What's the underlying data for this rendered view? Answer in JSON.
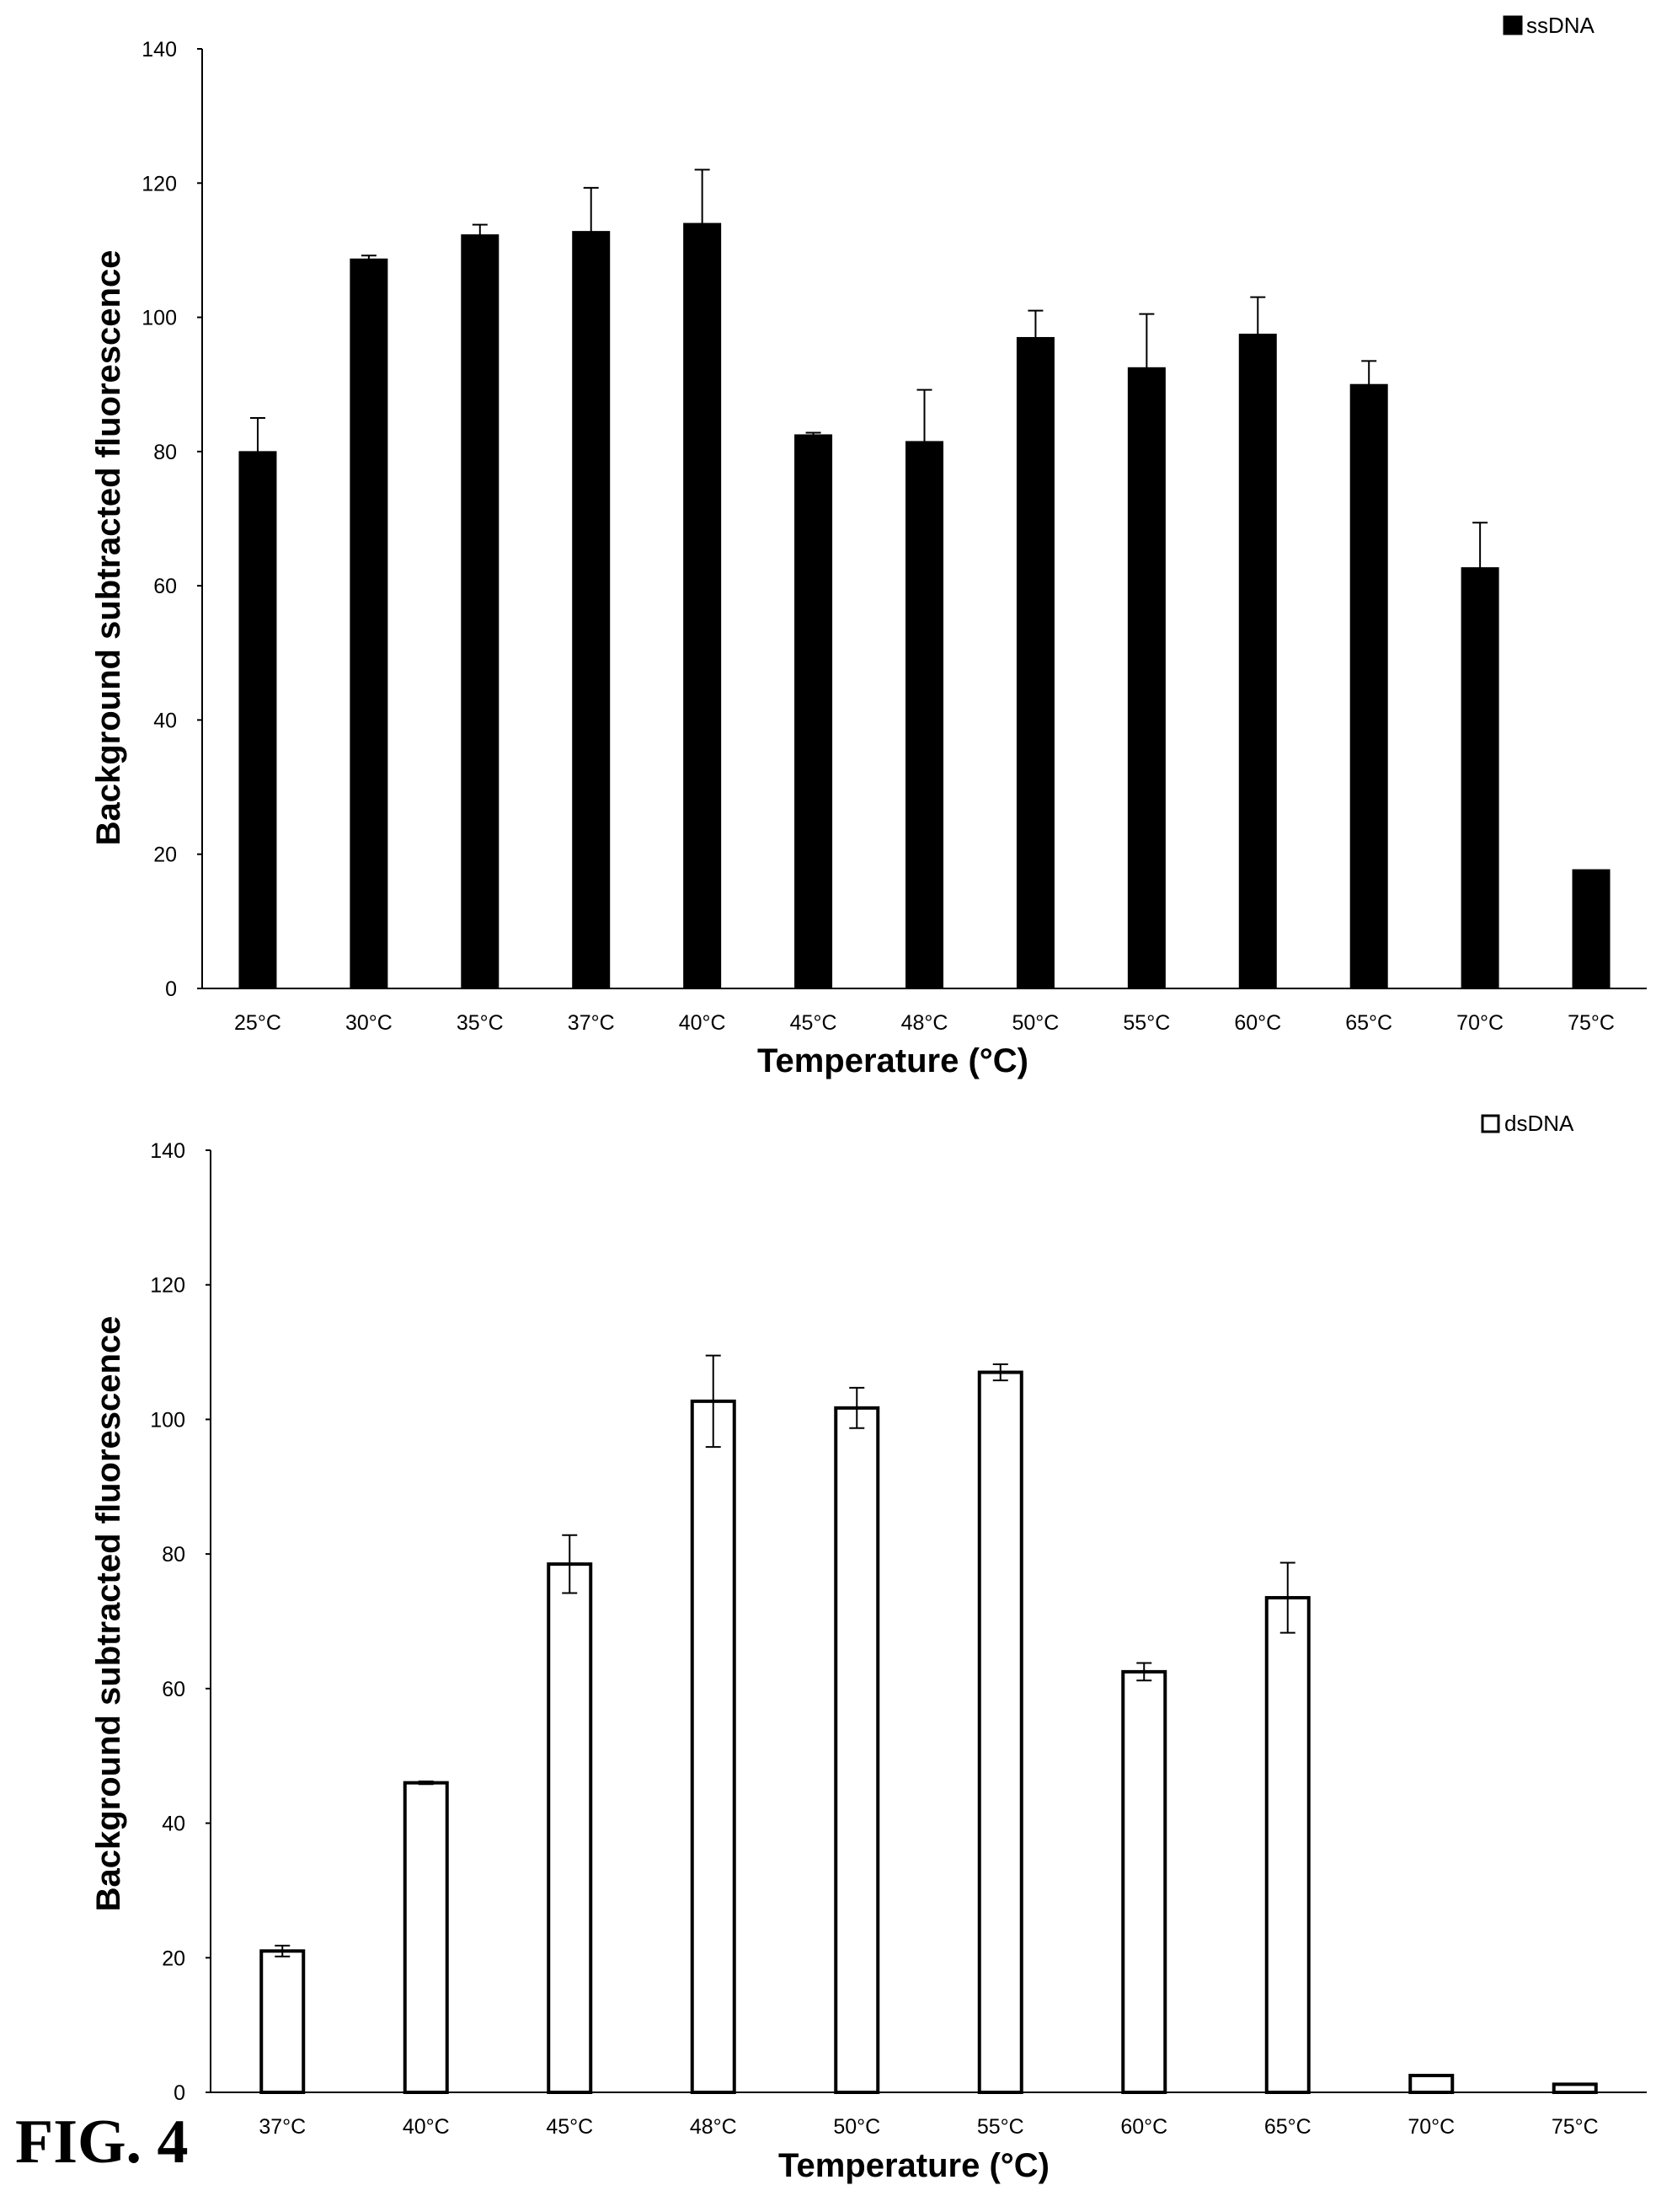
{
  "figure_label": "FIG. 4",
  "colors": {
    "ssDNA_fill": "#000000",
    "dsDNA_fill": "#ffffff",
    "stroke": "#000000"
  },
  "chart_data": [
    {
      "type": "bar",
      "xlabel": "Temperature (°C)",
      "ylabel": "Background subtracted fluorescence",
      "ylim": [
        0,
        140
      ],
      "yticks": [
        0,
        20,
        40,
        60,
        80,
        100,
        120,
        140
      ],
      "grid": false,
      "legend_position": "top-right",
      "categories": [
        "25°C",
        "30°C",
        "35°C",
        "37°C",
        "40°C",
        "45°C",
        "48°C",
        "50°C",
        "55°C",
        "60°C",
        "65°C",
        "70°C",
        "75°C"
      ],
      "series": [
        {
          "name": "ssDNA",
          "values": [
            80,
            108.7,
            112.3,
            112.8,
            114,
            82.5,
            81.5,
            97,
            92.5,
            97.5,
            90,
            62.7,
            17.7
          ],
          "error": [
            5,
            0.5,
            1.5,
            6.5,
            8,
            0.3,
            7.7,
            4,
            8,
            5.5,
            3.5,
            6.7,
            0
          ]
        }
      ]
    },
    {
      "type": "bar",
      "xlabel": "Temperature (°C)",
      "ylabel": "Background subtracted fluorescence",
      "ylim": [
        0,
        140
      ],
      "yticks": [
        0,
        20,
        40,
        60,
        80,
        100,
        120,
        140
      ],
      "grid": false,
      "legend_position": "top-right",
      "categories": [
        "37°C",
        "40°C",
        "45°C",
        "48°C",
        "50°C",
        "55°C",
        "60°C",
        "65°C",
        "70°C",
        "75°C"
      ],
      "series": [
        {
          "name": "dsDNA",
          "values": [
            21,
            46,
            78.5,
            102.7,
            101.7,
            107,
            62.5,
            73.5,
            2.5,
            1.2
          ],
          "error": [
            0.8,
            0.2,
            4.3,
            6.8,
            3,
            1.2,
            1.3,
            5.2,
            0,
            0
          ]
        }
      ]
    }
  ]
}
